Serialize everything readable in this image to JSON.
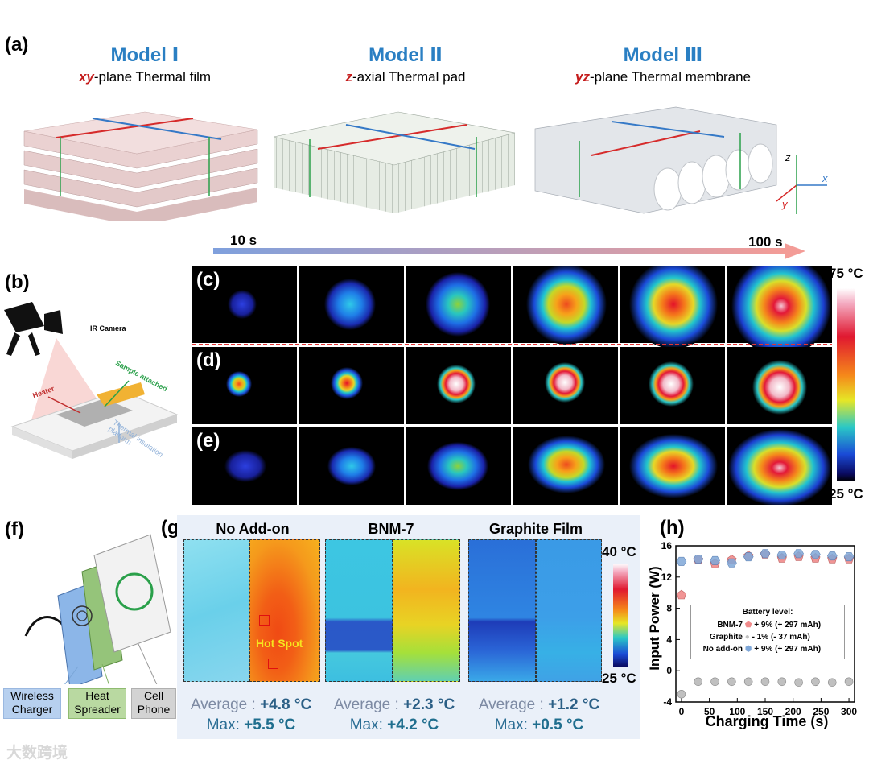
{
  "panel_labels": {
    "a": "(a)",
    "b": "(b)",
    "c": "(c)",
    "d": "(d)",
    "e": "(e)",
    "f": "(f)",
    "g": "(g)",
    "h": "(h)"
  },
  "models": [
    {
      "title": "Model Ⅰ",
      "sub_em": "xy",
      "sub_rest": "-plane Thermal film"
    },
    {
      "title": "Model Ⅱ",
      "sub_em": "z",
      "sub_rest": "-axial Thermal pad"
    },
    {
      "title": "Model Ⅲ",
      "sub_em": "yz",
      "sub_rest": "-plane Thermal membrane"
    }
  ],
  "axes_labels": {
    "x": "x",
    "y": "y",
    "z": "z"
  },
  "time_arrow": {
    "start": "10 s",
    "end": "100 s"
  },
  "ir_colorbar": {
    "max": "75 °C",
    "min": "25 °C"
  },
  "setup_b": {
    "camera": "IR Camera",
    "sample": "Sample attached",
    "heater": "Heater",
    "platform": "Thermal insulation platform"
  },
  "setup_f": {
    "charger": "Wireless Charger",
    "spreader": "Heat Spreader",
    "phone": "Cell Phone"
  },
  "g_panel": {
    "columns": [
      {
        "title": "No Add-on",
        "avg_label": "Average : ",
        "avg": "+4.8 °C",
        "max_label": "Max: ",
        "max": "+5.5 °C"
      },
      {
        "title": "BNM-7",
        "avg_label": "Average : ",
        "avg": "+2.3 °C",
        "max_label": "Max: ",
        "max": "+4.2 °C"
      },
      {
        "title": "Graphite Film",
        "avg_label": "Average : ",
        "avg": "+1.2 °C",
        "max_label": "Max: ",
        "max": "+0.5 °C"
      }
    ],
    "hotspot": "Hot Spot",
    "colorbar": {
      "max": "40 °C",
      "min": "25 °C"
    }
  },
  "watermark": "大数跨境",
  "chart_data": {
    "type": "scatter",
    "xlabel": "Charging Time (s)",
    "ylabel": "Input Power (W)",
    "xlim": [
      -10,
      310
    ],
    "ylim": [
      -4,
      16
    ],
    "xticks": [
      0,
      50,
      100,
      150,
      200,
      250,
      300
    ],
    "yticks": [
      -4,
      0,
      4,
      8,
      12,
      16
    ],
    "legend_title": "Battery level:",
    "series": [
      {
        "name": "BNM-7",
        "color": "#f08a8a",
        "marker": "pentagon",
        "legend_text": "+ 9% (+ 297 mAh)",
        "x": [
          0,
          30,
          60,
          90,
          120,
          150,
          180,
          210,
          240,
          270,
          300
        ],
        "y": [
          9.7,
          14.2,
          13.7,
          14.2,
          14.7,
          14.9,
          14.4,
          14.6,
          14.4,
          14.3,
          14.3
        ]
      },
      {
        "name": "Graphite",
        "color": "#c0c0c0",
        "marker": "circle",
        "legend_text": "- 1% (- 37 mAh)",
        "x": [
          0,
          30,
          60,
          90,
          120,
          150,
          180,
          210,
          240,
          270,
          300
        ],
        "y": [
          -3.0,
          -1.4,
          -1.4,
          -1.4,
          -1.4,
          -1.4,
          -1.4,
          -1.5,
          -1.4,
          -1.5,
          -1.4
        ]
      },
      {
        "name": "No add-on",
        "color": "#7fa7d8",
        "marker": "hexagon",
        "legend_text": "+ 9% (+ 297 mAh)",
        "x": [
          0,
          30,
          60,
          90,
          120,
          150,
          180,
          210,
          240,
          270,
          300
        ],
        "y": [
          14.0,
          14.3,
          14.1,
          13.8,
          14.6,
          15.0,
          14.8,
          15.0,
          14.9,
          14.7,
          14.6
        ]
      }
    ]
  }
}
